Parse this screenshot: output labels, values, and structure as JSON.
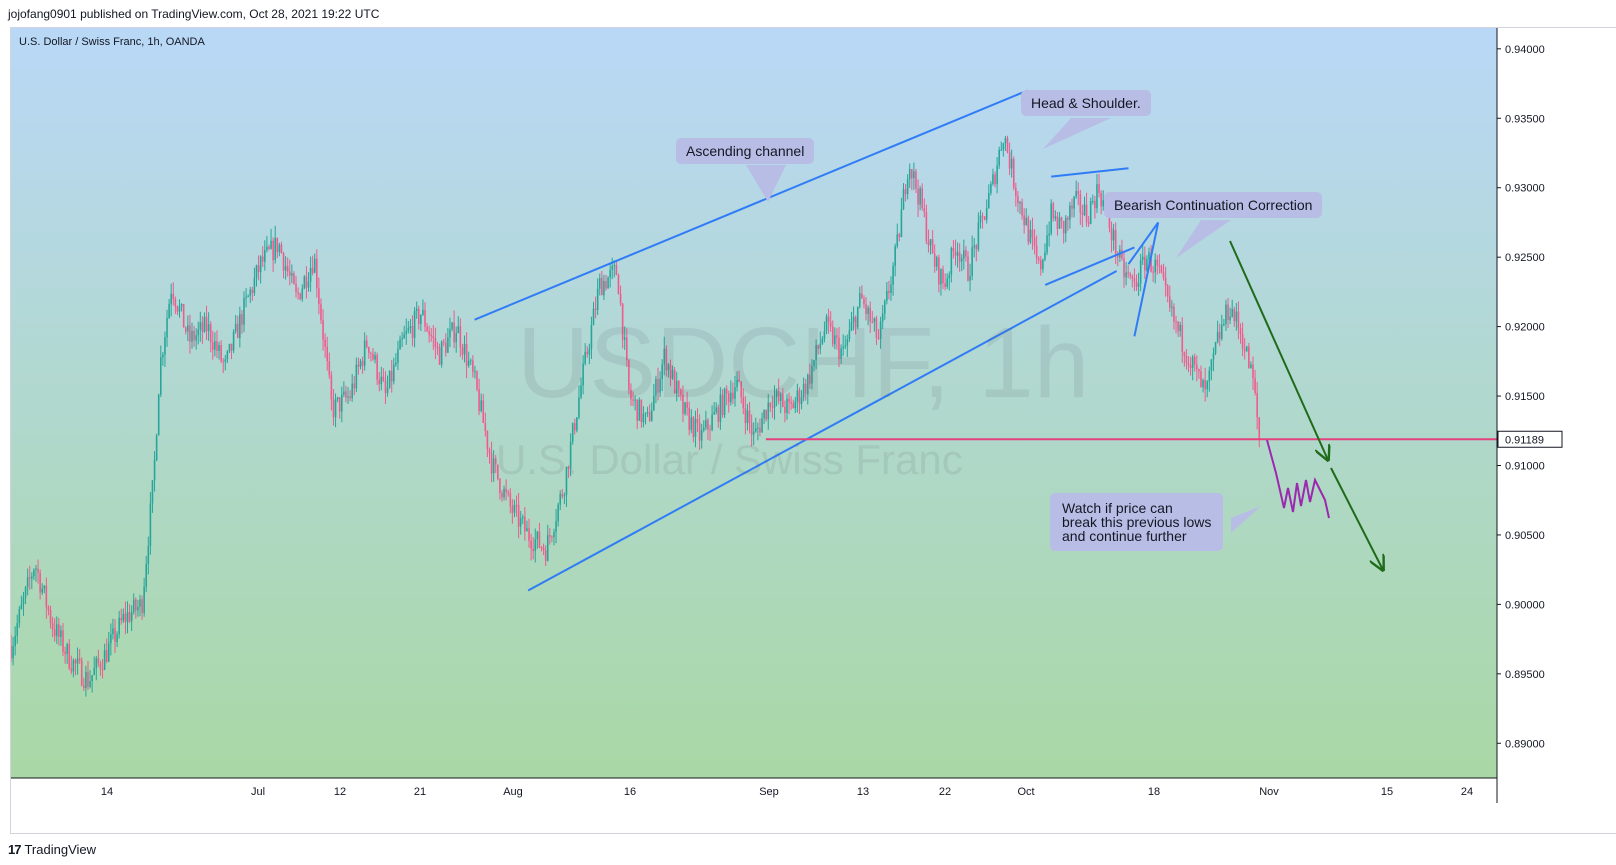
{
  "header": {
    "publish_line": "jojofang0901 published on TradingView.com, Oct 28, 2021 19:22 UTC"
  },
  "symbol": {
    "legend": "U.S. Dollar / Swiss Franc, 1h, OANDA"
  },
  "watermark": {
    "ticker": "USDCHF, 1h",
    "name": "U.S. Dollar / Swiss Franc"
  },
  "footer": {
    "logo_glyph": "17",
    "brand": "TradingView"
  },
  "annotations": {
    "ascending_channel": "Ascending channel",
    "head_shoulder": "Head & Shoulder.",
    "bearish_continuation": "Bearish Continuation Correction",
    "watch_note": "Watch if price can\nbreak this previous lows\nand continue further"
  },
  "colors": {
    "bg_top": "#b9d8f7",
    "bg_bottom": "#a9d8a5",
    "up_candle": "#26a69a",
    "down_candle": "#ef5b8b",
    "channel_line": "#2f7cf6",
    "support_line": "#e4427d",
    "price_tag": "#131722",
    "arrow": "#1f6b1a",
    "projection": "#9c27b0",
    "callout": "#b8bde6"
  },
  "chart_data": {
    "type": "candlestick",
    "title": "U.S. Dollar / Swiss Franc, 1h, OANDA",
    "symbol": "USDCHF",
    "interval": "1h",
    "xlabel": "",
    "ylabel": "",
    "x_tick_labels": [
      "14",
      "Jul",
      "12",
      "21",
      "Aug",
      "16",
      "Sep",
      "13",
      "22",
      "Oct",
      "18",
      "Nov",
      "15",
      "24"
    ],
    "y_tick_labels": [
      "0.94000",
      "0.93500",
      "0.93000",
      "0.92500",
      "0.92000",
      "0.91500",
      "0.91000",
      "0.90500",
      "0.90000",
      "0.89500",
      "0.89000"
    ],
    "y_ticks": [
      0.94,
      0.935,
      0.93,
      0.925,
      0.92,
      0.915,
      0.91,
      0.905,
      0.9,
      0.895,
      0.89
    ],
    "ylim": [
      0.8875,
      0.9415
    ],
    "last_price": 0.91189,
    "last_price_label": "0.91189",
    "price_path": [
      {
        "t": 0,
        "p": 0.897
      },
      {
        "t": 2,
        "p": 0.9
      },
      {
        "t": 4,
        "p": 0.903
      },
      {
        "t": 7,
        "p": 0.8985
      },
      {
        "t": 10,
        "p": 0.896
      },
      {
        "t": 13,
        "p": 0.8945
      },
      {
        "t": 16,
        "p": 0.8965
      },
      {
        "t": 19,
        "p": 0.899
      },
      {
        "t": 22,
        "p": 0.9
      },
      {
        "t": 24,
        "p": 0.909
      },
      {
        "t": 25,
        "p": 0.917
      },
      {
        "t": 27,
        "p": 0.923
      },
      {
        "t": 30,
        "p": 0.919
      },
      {
        "t": 33,
        "p": 0.92
      },
      {
        "t": 36,
        "p": 0.917
      },
      {
        "t": 39,
        "p": 0.921
      },
      {
        "t": 42,
        "p": 0.9245
      },
      {
        "t": 45,
        "p": 0.926
      },
      {
        "t": 48,
        "p": 0.922
      },
      {
        "t": 51,
        "p": 0.925
      },
      {
        "t": 54,
        "p": 0.914
      },
      {
        "t": 57,
        "p": 0.915
      },
      {
        "t": 60,
        "p": 0.919
      },
      {
        "t": 63,
        "p": 0.915
      },
      {
        "t": 66,
        "p": 0.919
      },
      {
        "t": 69,
        "p": 0.921
      },
      {
        "t": 72,
        "p": 0.918
      },
      {
        "t": 75,
        "p": 0.92
      },
      {
        "t": 78,
        "p": 0.916
      },
      {
        "t": 81,
        "p": 0.91
      },
      {
        "t": 84,
        "p": 0.907
      },
      {
        "t": 87,
        "p": 0.905
      },
      {
        "t": 90,
        "p": 0.904
      },
      {
        "t": 93,
        "p": 0.9085
      },
      {
        "t": 96,
        "p": 0.916
      },
      {
        "t": 99,
        "p": 0.923
      },
      {
        "t": 102,
        "p": 0.924
      },
      {
        "t": 104,
        "p": 0.915
      },
      {
        "t": 107,
        "p": 0.913
      },
      {
        "t": 110,
        "p": 0.918
      },
      {
        "t": 113,
        "p": 0.914
      },
      {
        "t": 116,
        "p": 0.912
      },
      {
        "t": 119,
        "p": 0.914
      },
      {
        "t": 122,
        "p": 0.916
      },
      {
        "t": 125,
        "p": 0.912
      },
      {
        "t": 128,
        "p": 0.915
      },
      {
        "t": 131,
        "p": 0.914
      },
      {
        "t": 134,
        "p": 0.916
      },
      {
        "t": 137,
        "p": 0.92
      },
      {
        "t": 140,
        "p": 0.918
      },
      {
        "t": 143,
        "p": 0.922
      },
      {
        "t": 146,
        "p": 0.919
      },
      {
        "t": 149,
        "p": 0.9255
      },
      {
        "t": 151,
        "p": 0.932
      },
      {
        "t": 153,
        "p": 0.929
      },
      {
        "t": 155,
        "p": 0.925
      },
      {
        "t": 157,
        "p": 0.923
      },
      {
        "t": 159,
        "p": 0.926
      },
      {
        "t": 161,
        "p": 0.924
      },
      {
        "t": 163,
        "p": 0.927
      },
      {
        "t": 165,
        "p": 0.93
      },
      {
        "t": 167,
        "p": 0.934
      },
      {
        "t": 169,
        "p": 0.93
      },
      {
        "t": 171,
        "p": 0.927
      },
      {
        "t": 173,
        "p": 0.924
      },
      {
        "t": 175,
        "p": 0.928
      },
      {
        "t": 177,
        "p": 0.927
      },
      {
        "t": 179,
        "p": 0.929
      },
      {
        "t": 181,
        "p": 0.928
      },
      {
        "t": 183,
        "p": 0.93
      },
      {
        "t": 185,
        "p": 0.927
      },
      {
        "t": 187,
        "p": 0.924
      },
      {
        "t": 189,
        "p": 0.923
      },
      {
        "t": 191,
        "p": 0.925
      },
      {
        "t": 193,
        "p": 0.924
      },
      {
        "t": 195,
        "p": 0.921
      },
      {
        "t": 197,
        "p": 0.919
      },
      {
        "t": 199,
        "p": 0.917
      },
      {
        "t": 201,
        "p": 0.915
      },
      {
        "t": 203,
        "p": 0.919
      },
      {
        "t": 205,
        "p": 0.9215
      },
      {
        "t": 207,
        "p": 0.9195
      },
      {
        "t": 209,
        "p": 0.916
      },
      {
        "t": 210,
        "p": 0.9119
      }
    ],
    "overlays": {
      "channel_top": [
        {
          "t": 78,
          "p": 0.9205
        },
        {
          "t": 171,
          "p": 0.937
        }
      ],
      "channel_bottom": [
        {
          "t": 87,
          "p": 0.901
        },
        {
          "t": 186,
          "p": 0.924
        }
      ],
      "support": [
        {
          "t": 127,
          "p": 0.91189
        },
        {
          "t": 250,
          "p": 0.91189
        }
      ],
      "flag_top": [
        {
          "t": 175,
          "p": 0.9308
        },
        {
          "t": 188,
          "p": 0.9314
        }
      ],
      "flag_bottom": [
        {
          "t": 174,
          "p": 0.923
        },
        {
          "t": 189,
          "p": 0.9257
        }
      ],
      "wedge": [
        {
          "t": 188,
          "p": 0.9245
        },
        {
          "t": 193,
          "p": 0.9275
        },
        {
          "t": 189,
          "p": 0.9193
        }
      ]
    }
  }
}
